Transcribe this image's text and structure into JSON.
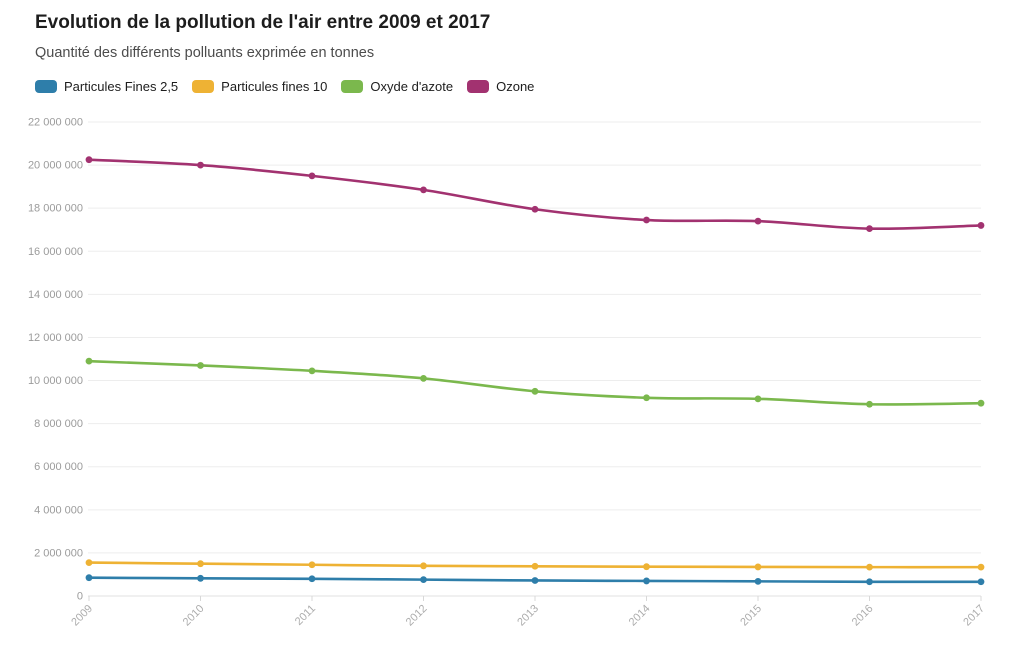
{
  "chart_data": {
    "type": "line",
    "title": "Evolution de la pollution de l'air entre 2009 et 2017",
    "subtitle": "Quantité des différents polluants exprimée en tonnes",
    "x": [
      "2009",
      "2010",
      "2011",
      "2012",
      "2013",
      "2014",
      "2015",
      "2016",
      "2017"
    ],
    "xlabel": "",
    "ylabel": "",
    "unit": "tonnes",
    "ylim": [
      0,
      22000000
    ],
    "ytick_step": 2000000,
    "grid": true,
    "legend_position": "top",
    "series": [
      {
        "name": "Particules Fines 2,5",
        "color": "#2e7eaa",
        "values": [
          850000,
          820000,
          800000,
          760000,
          720000,
          700000,
          680000,
          660000,
          660000
        ]
      },
      {
        "name": "Particules fines 10",
        "color": "#eeb234",
        "values": [
          1550000,
          1500000,
          1450000,
          1400000,
          1380000,
          1360000,
          1350000,
          1340000,
          1340000
        ]
      },
      {
        "name": "Oxyde d'azote",
        "color": "#7bb84d",
        "values": [
          10900000,
          10700000,
          10450000,
          10100000,
          9500000,
          9200000,
          9150000,
          8900000,
          8950000
        ]
      },
      {
        "name": "Ozone",
        "color": "#a23270",
        "values": [
          20250000,
          20000000,
          19500000,
          18850000,
          17950000,
          17450000,
          17400000,
          17050000,
          17200000
        ]
      }
    ]
  },
  "style": {
    "background": "#ffffff",
    "title_color": "#1d1d1d",
    "subtitle_color": "#4c4c4c",
    "axis_label_color": "#9b9b9b",
    "tick_label_color": "#adadad",
    "gridline_color": "#ededed",
    "axis_line_color": "#e0e0e0",
    "tick_color": "#d8d8d8"
  }
}
